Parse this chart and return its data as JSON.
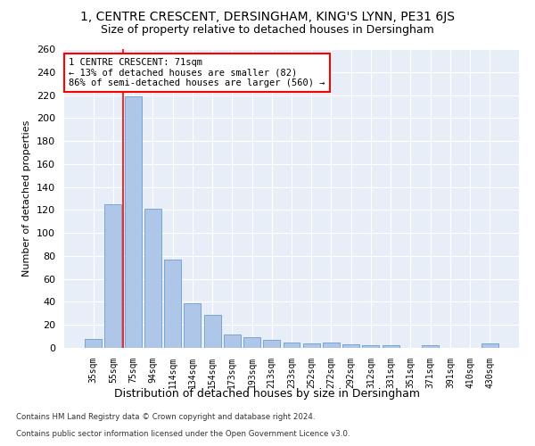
{
  "title": "1, CENTRE CRESCENT, DERSINGHAM, KING'S LYNN, PE31 6JS",
  "subtitle": "Size of property relative to detached houses in Dersingham",
  "xlabel": "Distribution of detached houses by size in Dersingham",
  "ylabel": "Number of detached properties",
  "categories": [
    "35sqm",
    "55sqm",
    "75sqm",
    "94sqm",
    "114sqm",
    "134sqm",
    "154sqm",
    "173sqm",
    "193sqm",
    "213sqm",
    "233sqm",
    "252sqm",
    "272sqm",
    "292sqm",
    "312sqm",
    "331sqm",
    "351sqm",
    "371sqm",
    "391sqm",
    "410sqm",
    "430sqm"
  ],
  "values": [
    8,
    125,
    219,
    121,
    77,
    39,
    29,
    12,
    9,
    7,
    5,
    4,
    5,
    3,
    2,
    2,
    0,
    2,
    0,
    0,
    4
  ],
  "bar_color": "#aec6e8",
  "bar_edge_color": "#5a8fc2",
  "vline_x": 1.5,
  "vline_color": "red",
  "annotation_line1": "1 CENTRE CRESCENT: 71sqm",
  "annotation_line2": "← 13% of detached houses are smaller (82)",
  "annotation_line3": "86% of semi-detached houses are larger (560) →",
  "annotation_box_color": "white",
  "annotation_box_edge": "red",
  "ylim": [
    0,
    260
  ],
  "yticks": [
    0,
    20,
    40,
    60,
    80,
    100,
    120,
    140,
    160,
    180,
    200,
    220,
    240,
    260
  ],
  "bg_color": "#e8eef7",
  "grid_color": "white",
  "footer1": "Contains HM Land Registry data © Crown copyright and database right 2024.",
  "footer2": "Contains public sector information licensed under the Open Government Licence v3.0.",
  "title_fontsize": 10,
  "subtitle_fontsize": 9,
  "xlabel_fontsize": 9,
  "ylabel_fontsize": 8
}
